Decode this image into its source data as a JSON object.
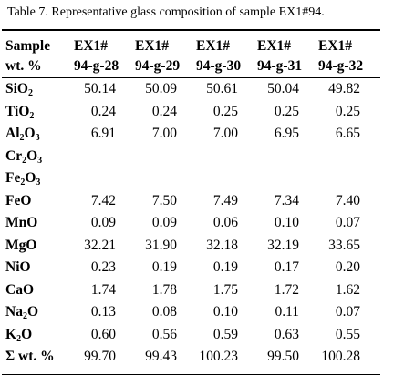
{
  "caption": "Table 7. Representative glass composition of sample EX1#94.",
  "header": {
    "row1": [
      "Sample",
      "EX1#",
      "EX1#",
      "EX1#",
      "EX1#",
      "EX1#"
    ],
    "row2": [
      "wt. %",
      "94-g-28",
      "94-g-29",
      "94-g-30",
      "94-g-31",
      "94-g-32"
    ]
  },
  "rows": [
    {
      "oxide": "SiO",
      "sub": "2",
      "values": [
        "50.14",
        "50.09",
        "50.61",
        "50.04",
        "49.82"
      ]
    },
    {
      "oxide": "TiO",
      "sub": "2",
      "values": [
        "0.24",
        "0.24",
        "0.25",
        "0.25",
        "0.25"
      ]
    },
    {
      "oxide": "Al",
      "sub": "2",
      "oxide2": "O",
      "sub2": "3",
      "values": [
        "6.91",
        "7.00",
        "7.00",
        "6.95",
        "6.65"
      ]
    },
    {
      "oxide": "Cr",
      "sub": "2",
      "oxide2": "O",
      "sub2": "3",
      "values": [
        "",
        "",
        "",
        "",
        ""
      ]
    },
    {
      "oxide": "Fe",
      "sub": "2",
      "oxide2": "O",
      "sub2": "3",
      "values": [
        "",
        "",
        "",
        "",
        ""
      ]
    },
    {
      "oxide": "FeO",
      "values": [
        "7.42",
        "7.50",
        "7.49",
        "7.34",
        "7.40"
      ]
    },
    {
      "oxide": "MnO",
      "values": [
        "0.09",
        "0.09",
        "0.06",
        "0.10",
        "0.07"
      ]
    },
    {
      "oxide": "MgO",
      "values": [
        "32.21",
        "31.90",
        "32.18",
        "32.19",
        "33.65"
      ]
    },
    {
      "oxide": "NiO",
      "values": [
        "0.23",
        "0.19",
        "0.19",
        "0.17",
        "0.20"
      ]
    },
    {
      "oxide": "CaO",
      "values": [
        "1.74",
        "1.78",
        "1.75",
        "1.72",
        "1.62"
      ]
    },
    {
      "oxide": "Na",
      "sub": "2",
      "oxide2": "O",
      "values": [
        "0.13",
        "0.08",
        "0.10",
        "0.11",
        "0.07"
      ]
    },
    {
      "oxide": "K",
      "sub": "2",
      "oxide2": "O",
      "values": [
        "0.60",
        "0.56",
        "0.59",
        "0.63",
        "0.55"
      ]
    },
    {
      "oxide": "Σ wt. %",
      "values": [
        "99.70",
        "99.43",
        "100.23",
        "99.50",
        "100.28"
      ]
    }
  ]
}
